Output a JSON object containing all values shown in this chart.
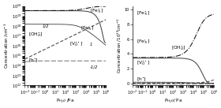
{
  "bg": "#f0f0f0",
  "lw": 0.75,
  "left": {
    "xlabel": "P$_{H_2O}$ /Pa",
    "ylabel": "Concentration /cm$^{-3}$",
    "xlim": [
      0.01,
      1000000.0
    ],
    "ylim": [
      1000000000000.0,
      1e+20
    ]
  },
  "right": {
    "xlabel": "P$_{H_2O}$/ Pa",
    "ylabel": "Concentration /10$^{19}$cm$^{-1}$",
    "xlim": [
      0.01,
      1000000.0
    ],
    "ylim": [
      -0.3,
      10.5
    ]
  }
}
